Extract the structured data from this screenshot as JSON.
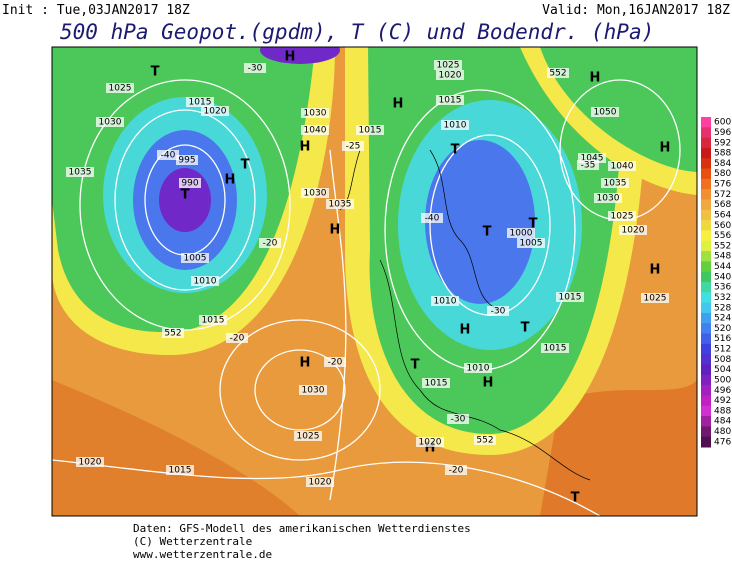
{
  "header": {
    "init": "Init : Tue,03JAN2017 18Z",
    "valid": "Valid: Mon,16JAN2017 18Z",
    "title": "500 hPa Geopot.(gpdm), T (C) und Bodendr. (hPa)"
  },
  "colorbar": {
    "levels": [
      600,
      596,
      592,
      588,
      584,
      580,
      576,
      572,
      568,
      564,
      560,
      556,
      552,
      548,
      544,
      540,
      536,
      532,
      528,
      524,
      520,
      516,
      512,
      508,
      504,
      500,
      496,
      492,
      488,
      484,
      480,
      476
    ],
    "colors": [
      "#ff40a0",
      "#e83070",
      "#d82840",
      "#c81818",
      "#d83010",
      "#e85010",
      "#f07020",
      "#f09030",
      "#f0a840",
      "#f0c040",
      "#f0d840",
      "#f8f040",
      "#e0f040",
      "#a0e040",
      "#60d040",
      "#40c860",
      "#40d8a0",
      "#40e0e0",
      "#40c8f0",
      "#40a0f0",
      "#4080f0",
      "#4060e8",
      "#4040e0",
      "#5030d0",
      "#6020c0",
      "#8020c0",
      "#a020c0",
      "#c020c0",
      "#d030d0",
      "#a020a0",
      "#701870",
      "#501050"
    ]
  },
  "map": {
    "labels": [
      "T",
      "H",
      "T",
      "H",
      "H",
      "H",
      "T",
      "H",
      "T",
      "H",
      "H",
      "H",
      "T",
      "T",
      "H",
      "T",
      "T",
      "H",
      "H",
      "H",
      "T",
      "995",
      "990",
      "1005",
      "1010",
      "1015",
      "1025",
      "1030",
      "1035",
      "1020",
      "1030",
      "1040",
      "1030",
      "1035",
      "1025",
      "1020",
      "1015",
      "1010",
      "1000",
      "1005",
      "1010",
      "1015",
      "1015",
      "1015",
      "1010",
      "1015",
      "1050",
      "1045",
      "1040",
      "1035",
      "1030",
      "1025",
      "1020",
      "1025",
      "1020",
      "1030",
      "1025",
      "1020",
      "1015",
      "1020",
      "1015",
      "552",
      "552",
      "552",
      "-30",
      "-20",
      "-40",
      "-35",
      "-20",
      "-40",
      "-30",
      "-20",
      "-30",
      "-20",
      "-25"
    ]
  },
  "footer": {
    "line1": "Daten: GFS-Modell des amerikanischen Wetterdienstes",
    "line2": "(C) Wetterzentrale",
    "line3": "www.wetterzentrale.de"
  }
}
